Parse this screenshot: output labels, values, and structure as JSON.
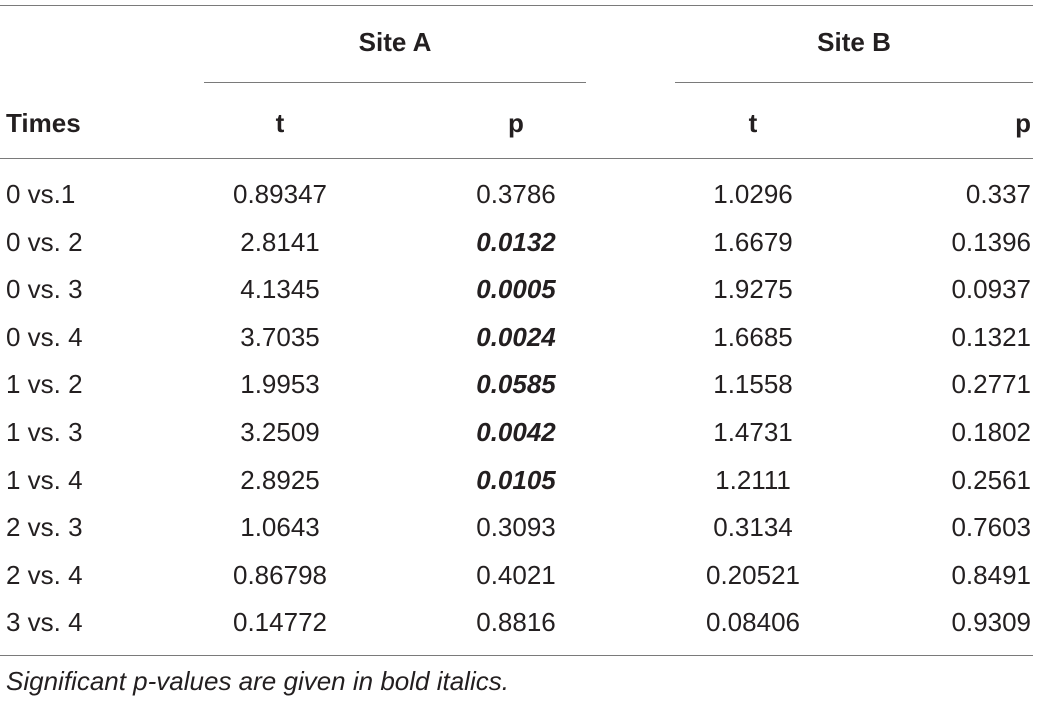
{
  "table": {
    "groups": {
      "site_a": "Site A",
      "site_b": "Site B"
    },
    "columns": {
      "times": "Times",
      "t_a": "t",
      "p_a": "p",
      "t_b": "t",
      "p_b": "p"
    },
    "rows": [
      {
        "times": "0 vs.1",
        "t_a": "0.89347",
        "p_a": "0.3786",
        "t_b": "1.0296",
        "p_b": "0.337",
        "p_a_significant": false
      },
      {
        "times": "0 vs. 2",
        "t_a": "2.8141",
        "p_a": "0.0132",
        "t_b": "1.6679",
        "p_b": "0.1396",
        "p_a_significant": true
      },
      {
        "times": "0 vs. 3",
        "t_a": "4.1345",
        "p_a": "0.0005",
        "t_b": "1.9275",
        "p_b": "0.0937",
        "p_a_significant": true
      },
      {
        "times": "0 vs. 4",
        "t_a": "3.7035",
        "p_a": "0.0024",
        "t_b": "1.6685",
        "p_b": "0.1321",
        "p_a_significant": true
      },
      {
        "times": "1 vs. 2",
        "t_a": "1.9953",
        "p_a": "0.0585",
        "t_b": "1.1558",
        "p_b": "0.2771",
        "p_a_significant": true
      },
      {
        "times": "1 vs. 3",
        "t_a": "3.2509",
        "p_a": "0.0042",
        "t_b": "1.4731",
        "p_b": "0.1802",
        "p_a_significant": true
      },
      {
        "times": "1 vs. 4",
        "t_a": "2.8925",
        "p_a": "0.0105",
        "t_b": "1.2111",
        "p_b": "0.2561",
        "p_a_significant": true
      },
      {
        "times": "2 vs. 3",
        "t_a": "1.0643",
        "p_a": "0.3093",
        "t_b": "0.3134",
        "p_b": "0.7603",
        "p_a_significant": false
      },
      {
        "times": "2 vs. 4",
        "t_a": "0.86798",
        "p_a": "0.4021",
        "t_b": "0.20521",
        "p_b": "0.8491",
        "p_a_significant": false
      },
      {
        "times": "3 vs. 4",
        "t_a": "0.14772",
        "p_a": "0.8816",
        "t_b": "0.08406",
        "p_b": "0.9309",
        "p_a_significant": false
      }
    ],
    "footnote": "Significant p-values are given in bold italics."
  }
}
